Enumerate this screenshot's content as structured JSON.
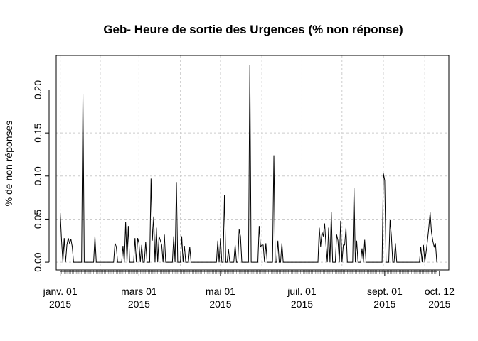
{
  "chart_data": {
    "type": "line",
    "title": "Geb- Heure de sortie des Urgences (% non réponse)",
    "xlabel": "",
    "ylabel": "% de non réponses",
    "x_axis": "date",
    "xlim": [
      "2014-12-29",
      "2015-10-19"
    ],
    "ylim": [
      -0.009,
      0.24
    ],
    "grid": true,
    "line_color": "#000000",
    "grid_color": "#cccccc",
    "y_ticks": [
      {
        "value": 0.0,
        "label": "0.00"
      },
      {
        "value": 0.05,
        "label": "0.05"
      },
      {
        "value": 0.1,
        "label": "0.10"
      },
      {
        "value": 0.15,
        "label": "0.15"
      },
      {
        "value": 0.2,
        "label": "0.20"
      }
    ],
    "x_ticks": [
      {
        "date": "2015-01-01",
        "label": [
          "janv. 01",
          "2015"
        ]
      },
      {
        "date": "2015-03-01",
        "label": [
          "mars 01",
          "2015"
        ]
      },
      {
        "date": "2015-05-01",
        "label": [
          "mai 01",
          "2015"
        ]
      },
      {
        "date": "2015-07-01",
        "label": [
          "juil. 01",
          "2015"
        ]
      },
      {
        "date": "2015-09-01",
        "label": [
          "sept. 01",
          "2015"
        ]
      },
      {
        "date": "2015-10-12",
        "label": [
          "oct. 12",
          "2015"
        ]
      }
    ],
    "x_grid_dates": [
      "2015-01-01",
      "2015-01-31",
      "2015-03-01",
      "2015-04-01",
      "2015-05-01",
      "2015-06-01",
      "2015-07-01",
      "2015-07-31",
      "2015-08-31",
      "2015-10-01"
    ],
    "series": [
      {
        "points": [
          [
            "2015-01-01",
            0.057
          ],
          [
            "2015-01-02",
            0.025
          ],
          [
            "2015-01-03",
            0
          ],
          [
            "2015-01-04",
            0.028
          ],
          [
            "2015-01-05",
            0
          ],
          [
            "2015-01-06",
            0.02
          ],
          [
            "2015-01-07",
            0.028
          ],
          [
            "2015-01-08",
            0.022
          ],
          [
            "2015-01-09",
            0.027
          ],
          [
            "2015-01-10",
            0.018
          ],
          [
            "2015-01-11",
            0
          ],
          [
            "2015-01-17",
            0
          ],
          [
            "2015-01-18",
            0.195
          ],
          [
            "2015-01-19",
            0
          ],
          [
            "2015-01-26",
            0
          ],
          [
            "2015-01-27",
            0.03
          ],
          [
            "2015-01-28",
            0
          ],
          [
            "2015-02-10",
            0
          ],
          [
            "2015-02-11",
            0.022
          ],
          [
            "2015-02-12",
            0.018
          ],
          [
            "2015-02-13",
            0
          ],
          [
            "2015-02-16",
            0
          ],
          [
            "2015-02-17",
            0.019
          ],
          [
            "2015-02-18",
            0
          ],
          [
            "2015-02-19",
            0.047
          ],
          [
            "2015-02-20",
            0
          ],
          [
            "2015-02-21",
            0.042
          ],
          [
            "2015-02-22",
            0
          ],
          [
            "2015-02-25",
            0
          ],
          [
            "2015-02-26",
            0.028
          ],
          [
            "2015-02-27",
            0
          ],
          [
            "2015-02-28",
            0.028
          ],
          [
            "2015-03-01",
            0.022
          ],
          [
            "2015-03-02",
            0
          ],
          [
            "2015-03-03",
            0.02
          ],
          [
            "2015-03-04",
            0
          ],
          [
            "2015-03-05",
            0
          ],
          [
            "2015-03-06",
            0.024
          ],
          [
            "2015-03-07",
            0
          ],
          [
            "2015-03-09",
            0
          ],
          [
            "2015-03-10",
            0.097
          ],
          [
            "2015-03-11",
            0.025
          ],
          [
            "2015-03-12",
            0.053
          ],
          [
            "2015-03-13",
            0
          ],
          [
            "2015-03-14",
            0.04
          ],
          [
            "2015-03-15",
            0
          ],
          [
            "2015-03-16",
            0.03
          ],
          [
            "2015-03-17",
            0.025
          ],
          [
            "2015-03-18",
            0.02
          ],
          [
            "2015-03-19",
            0
          ],
          [
            "2015-03-20",
            0.032
          ],
          [
            "2015-03-21",
            0
          ],
          [
            "2015-03-26",
            0
          ],
          [
            "2015-03-27",
            0.03
          ],
          [
            "2015-03-28",
            0
          ],
          [
            "2015-03-29",
            0.093
          ],
          [
            "2015-03-30",
            0
          ],
          [
            "2015-04-01",
            0
          ],
          [
            "2015-04-02",
            0.03
          ],
          [
            "2015-04-03",
            0
          ],
          [
            "2015-04-04",
            0.019
          ],
          [
            "2015-04-05",
            0
          ],
          [
            "2015-04-07",
            0
          ],
          [
            "2015-04-08",
            0.018
          ],
          [
            "2015-04-09",
            0
          ],
          [
            "2015-04-28",
            0
          ],
          [
            "2015-04-29",
            0.025
          ],
          [
            "2015-04-30",
            0
          ],
          [
            "2015-05-01",
            0.028
          ],
          [
            "2015-05-02",
            0
          ],
          [
            "2015-05-03",
            0
          ],
          [
            "2015-05-04",
            0.078
          ],
          [
            "2015-05-05",
            0
          ],
          [
            "2015-05-06",
            0
          ],
          [
            "2015-05-07",
            0.015
          ],
          [
            "2015-05-08",
            0
          ],
          [
            "2015-05-11",
            0
          ],
          [
            "2015-05-12",
            0.02
          ],
          [
            "2015-05-13",
            0
          ],
          [
            "2015-05-14",
            0
          ],
          [
            "2015-05-15",
            0.038
          ],
          [
            "2015-05-16",
            0.03
          ],
          [
            "2015-05-17",
            0
          ],
          [
            "2015-05-22",
            0
          ],
          [
            "2015-05-23",
            0.229
          ],
          [
            "2015-05-24",
            0
          ],
          [
            "2015-05-29",
            0
          ],
          [
            "2015-05-30",
            0.042
          ],
          [
            "2015-05-31",
            0.018
          ],
          [
            "2015-06-01",
            0.02
          ],
          [
            "2015-06-02",
            0.02
          ],
          [
            "2015-06-03",
            0
          ],
          [
            "2015-06-04",
            0.022
          ],
          [
            "2015-06-05",
            0
          ],
          [
            "2015-06-09",
            0
          ],
          [
            "2015-06-10",
            0.124
          ],
          [
            "2015-06-11",
            0
          ],
          [
            "2015-06-12",
            0
          ],
          [
            "2015-06-13",
            0.025
          ],
          [
            "2015-06-14",
            0
          ],
          [
            "2015-06-15",
            0
          ],
          [
            "2015-06-16",
            0.022
          ],
          [
            "2015-06-17",
            0
          ],
          [
            "2015-07-13",
            0
          ],
          [
            "2015-07-14",
            0.04
          ],
          [
            "2015-07-15",
            0.018
          ],
          [
            "2015-07-16",
            0.035
          ],
          [
            "2015-07-17",
            0.03
          ],
          [
            "2015-07-18",
            0.045
          ],
          [
            "2015-07-19",
            0.02
          ],
          [
            "2015-07-20",
            0
          ],
          [
            "2015-07-21",
            0.04
          ],
          [
            "2015-07-22",
            0
          ],
          [
            "2015-07-23",
            0.058
          ],
          [
            "2015-07-24",
            0
          ],
          [
            "2015-07-26",
            0
          ],
          [
            "2015-07-27",
            0.032
          ],
          [
            "2015-07-28",
            0.025
          ],
          [
            "2015-07-29",
            0
          ],
          [
            "2015-07-30",
            0.048
          ],
          [
            "2015-07-31",
            0
          ],
          [
            "2015-08-01",
            0.02
          ],
          [
            "2015-08-02",
            0.02
          ],
          [
            "2015-08-03",
            0.04
          ],
          [
            "2015-08-04",
            0
          ],
          [
            "2015-08-08",
            0
          ],
          [
            "2015-08-09",
            0.086
          ],
          [
            "2015-08-10",
            0
          ],
          [
            "2015-08-11",
            0.025
          ],
          [
            "2015-08-12",
            0
          ],
          [
            "2015-08-14",
            0
          ],
          [
            "2015-08-15",
            0.016
          ],
          [
            "2015-08-16",
            0
          ],
          [
            "2015-08-17",
            0.026
          ],
          [
            "2015-08-18",
            0
          ],
          [
            "2015-08-30",
            0
          ],
          [
            "2015-08-31",
            0.103
          ],
          [
            "2015-09-01",
            0.095
          ],
          [
            "2015-09-02",
            0
          ],
          [
            "2015-09-04",
            0
          ],
          [
            "2015-09-05",
            0.049
          ],
          [
            "2015-09-06",
            0.03
          ],
          [
            "2015-09-07",
            0
          ],
          [
            "2015-09-08",
            0
          ],
          [
            "2015-09-09",
            0.022
          ],
          [
            "2015-09-10",
            0
          ],
          [
            "2015-09-27",
            0
          ],
          [
            "2015-09-28",
            0.018
          ],
          [
            "2015-09-29",
            0
          ],
          [
            "2015-09-30",
            0.02
          ],
          [
            "2015-10-01",
            0
          ],
          [
            "2015-10-02",
            0.012
          ],
          [
            "2015-10-03",
            0.025
          ],
          [
            "2015-10-04",
            0.04
          ],
          [
            "2015-10-05",
            0.058
          ],
          [
            "2015-10-06",
            0.035
          ],
          [
            "2015-10-07",
            0.025
          ],
          [
            "2015-10-08",
            0.018
          ],
          [
            "2015-10-09",
            0.022
          ],
          [
            "2015-10-10",
            0
          ]
        ]
      }
    ]
  }
}
